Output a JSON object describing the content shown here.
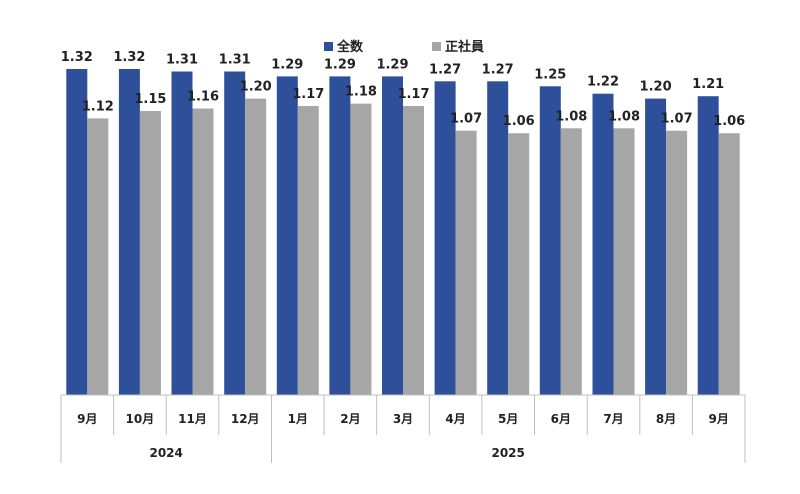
{
  "chart_data": {
    "type": "bar",
    "categories": [
      "9月",
      "10月",
      "11月",
      "12月",
      "1月",
      "2月",
      "3月",
      "4月",
      "5月",
      "6月",
      "7月",
      "8月",
      "9月"
    ],
    "groups": [
      {
        "label": "2024",
        "start": 0,
        "end": 3
      },
      {
        "label": "2025",
        "start": 4,
        "end": 12
      }
    ],
    "series": [
      {
        "name": "全数",
        "color": "#2e4f9a",
        "values": [
          1.32,
          1.32,
          1.31,
          1.31,
          1.29,
          1.29,
          1.29,
          1.27,
          1.27,
          1.25,
          1.22,
          1.2,
          1.21
        ]
      },
      {
        "name": "正社員",
        "color": "#a6a6a6",
        "values": [
          1.12,
          1.15,
          1.16,
          1.2,
          1.17,
          1.18,
          1.17,
          1.07,
          1.06,
          1.08,
          1.08,
          1.07,
          1.06
        ]
      }
    ],
    "ylim": [
      0,
      1.4
    ],
    "grid": false,
    "legend_position": "top-center"
  }
}
